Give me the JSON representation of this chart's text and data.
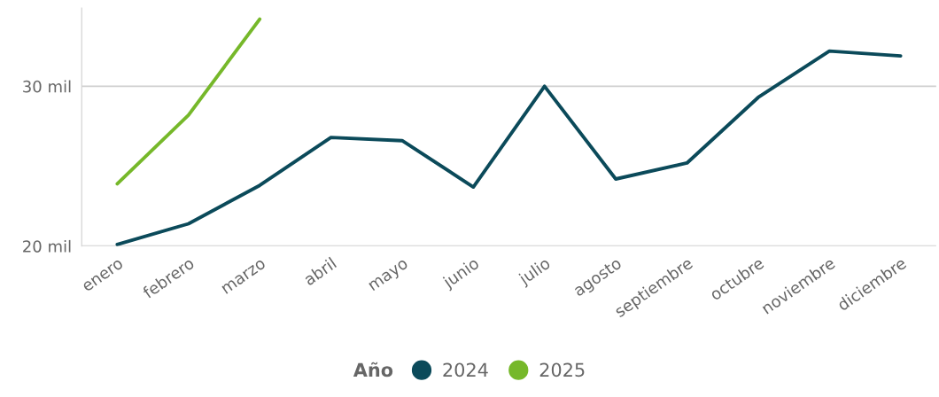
{
  "chart_data": {
    "type": "line",
    "categories": [
      "enero",
      "febrero",
      "marzo",
      "abril",
      "mayo",
      "junio",
      "julio",
      "agosto",
      "septiembre",
      "octubre",
      "noviembre",
      "diciembre"
    ],
    "series": [
      {
        "name": "2024",
        "color": "#0b4a5a",
        "values": [
          20.1,
          21.4,
          23.8,
          26.8,
          26.6,
          23.7,
          30.0,
          24.2,
          25.2,
          29.3,
          32.2,
          31.9
        ]
      },
      {
        "name": "2025",
        "color": "#76b82a",
        "values": [
          23.9,
          28.2,
          34.2,
          null,
          null,
          null,
          null,
          null,
          null,
          null,
          null,
          null
        ]
      }
    ],
    "ylim": [
      20,
      34.9
    ],
    "yticks": [
      {
        "value": 20,
        "label": "20 mil"
      },
      {
        "value": 30,
        "label": "30 mil"
      }
    ],
    "grid": "y",
    "legend": "bottom",
    "legend_title": "Año",
    "marker": "none",
    "line_style": "solid"
  }
}
